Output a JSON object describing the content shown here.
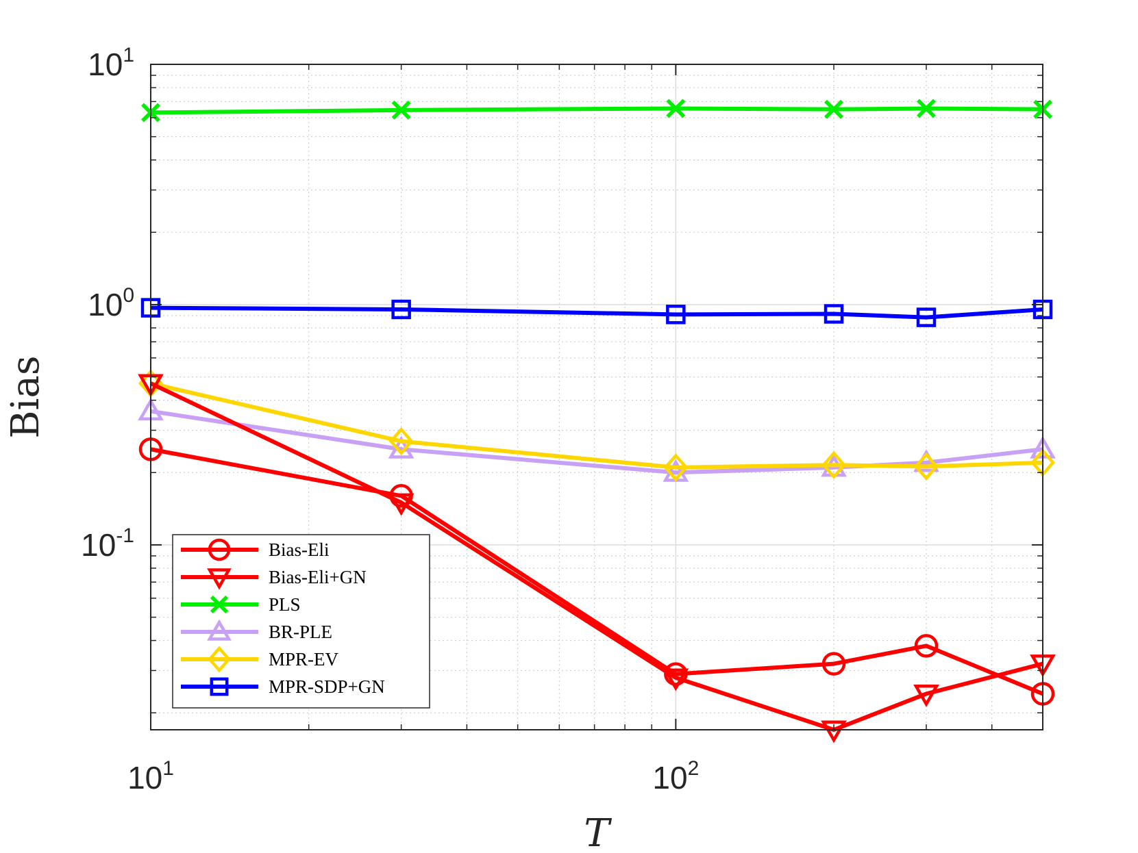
{
  "chart_data": {
    "type": "line",
    "title": "",
    "xlabel": "T",
    "ylabel": "Bias",
    "xscale": "log",
    "yscale": "log",
    "xlim": [
      10,
      500
    ],
    "ylim": [
      0.017,
      10
    ],
    "grid": true,
    "minor_grid": true,
    "legend_position": "bottom-left",
    "x": [
      10,
      30,
      100,
      200,
      300,
      500
    ],
    "x_ticks": [
      {
        "value": 10,
        "base": "10",
        "exp": "1"
      },
      {
        "value": 100,
        "base": "10",
        "exp": "2"
      }
    ],
    "y_ticks": [
      {
        "value": 10,
        "base": "10",
        "exp": "1"
      },
      {
        "value": 1,
        "base": "10",
        "exp": "0"
      },
      {
        "value": 0.1,
        "base": "10",
        "exp": "-1"
      }
    ],
    "series": [
      {
        "name": "Bias-Eli",
        "color": "#ff0000",
        "marker": "circle",
        "values": [
          0.25,
          0.16,
          0.029,
          0.032,
          0.038,
          0.024
        ]
      },
      {
        "name": "Bias-Eli+GN",
        "color": "#ff0000",
        "marker": "triangle-down",
        "values": [
          0.47,
          0.15,
          0.028,
          0.017,
          0.024,
          0.032
        ]
      },
      {
        "name": "PLS",
        "color": "#00ee00",
        "marker": "x",
        "values": [
          6.3,
          6.45,
          6.55,
          6.5,
          6.55,
          6.5
        ]
      },
      {
        "name": "BR-PLE",
        "color": "#c8a0f5",
        "marker": "triangle-up",
        "values": [
          0.36,
          0.25,
          0.2,
          0.21,
          0.22,
          0.25
        ]
      },
      {
        "name": "MPR-EV",
        "color": "#ffd700",
        "marker": "diamond",
        "values": [
          0.47,
          0.27,
          0.21,
          0.215,
          0.212,
          0.22
        ]
      },
      {
        "name": "MPR-SDP+GN",
        "color": "#0000ff",
        "marker": "square",
        "values": [
          0.97,
          0.955,
          0.91,
          0.915,
          0.885,
          0.955
        ]
      }
    ]
  }
}
